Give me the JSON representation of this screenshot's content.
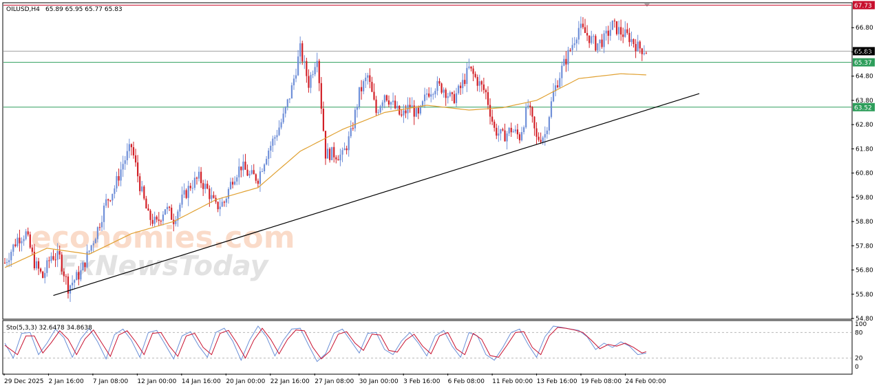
{
  "header": {
    "symbol": "OILUSD,H4",
    "ohlc": "65.89 65.95 65.77 65.83"
  },
  "colors": {
    "up_candle": "#6f8fd8",
    "down_candle": "#d21f26",
    "ma_line": "#e0a030",
    "resistance_line": "#c8102e",
    "support_line": "#2e9e5b",
    "current_price_line": "#a0a0a0",
    "trendline": "#000000",
    "stoch_main": "#6a8fd6",
    "stoch_signal": "#c8102e"
  },
  "chart_data": [
    {
      "type": "candlestick",
      "title": "OILUSD,H4",
      "ylim": [
        54.8,
        67.8
      ],
      "y_ticks": [
        "66.80",
        "65.80",
        "64.80",
        "63.80",
        "62.80",
        "61.80",
        "60.80",
        "59.80",
        "58.80",
        "57.80",
        "56.80",
        "55.80",
        "54.80"
      ],
      "x_ticks": [
        "29 Dec 2025",
        "2 Jan 16:00",
        "7 Jan 08:00",
        "12 Jan 00:00",
        "14 Jan 16:00",
        "20 Jan 00:00",
        "22 Jan 16:00",
        "27 Jan 08:00",
        "30 Jan 00:00",
        "3 Feb 16:00",
        "6 Feb 08:00",
        "11 Feb 00:00",
        "13 Feb 16:00",
        "19 Feb 08:00",
        "24 Feb 00:00"
      ],
      "horizontal_levels": [
        {
          "label": "67.73",
          "value": 67.73,
          "kind": "resistance"
        },
        {
          "label": "65.83",
          "value": 65.83,
          "kind": "current"
        },
        {
          "label": "65.37",
          "value": 65.37,
          "kind": "support"
        },
        {
          "label": "63.52",
          "value": 63.52,
          "kind": "support"
        }
      ],
      "trendline": {
        "from": {
          "bar": 20,
          "price": 55.75
        },
        "to": {
          "bar": 168,
          "price": 64.08
        }
      },
      "close_path": [
        [
          0,
          57.1
        ],
        [
          6,
          58.1
        ],
        [
          10,
          58.3
        ],
        [
          14,
          57.1
        ],
        [
          18,
          56.5
        ],
        [
          22,
          57.4
        ],
        [
          26,
          57.3
        ],
        [
          30,
          56.1
        ],
        [
          36,
          56.7
        ],
        [
          40,
          57.6
        ],
        [
          44,
          58.5
        ],
        [
          48,
          59.6
        ],
        [
          52,
          60.2
        ],
        [
          56,
          61.2
        ],
        [
          60,
          61.9
        ],
        [
          64,
          60.3
        ],
        [
          68,
          59.0
        ],
        [
          72,
          58.7
        ],
        [
          76,
          59.4
        ],
        [
          80,
          58.9
        ],
        [
          84,
          59.7
        ],
        [
          88,
          60.3
        ],
        [
          92,
          60.6
        ],
        [
          96,
          60.1
        ],
        [
          100,
          59.4
        ],
        [
          104,
          59.6
        ],
        [
          108,
          60.6
        ],
        [
          112,
          61.1
        ],
        [
          116,
          60.7
        ],
        [
          120,
          60.6
        ],
        [
          124,
          61.6
        ],
        [
          128,
          62.3
        ],
        [
          132,
          63.1
        ],
        [
          136,
          64.3
        ],
        [
          140,
          65.9
        ],
        [
          144,
          64.5
        ],
        [
          148,
          65.7
        ],
        [
          150,
          63.6
        ],
        [
          152,
          61.6
        ],
        [
          156,
          61.6
        ],
        [
          160,
          61.5
        ],
        [
          164,
          62.4
        ],
        [
          168,
          64.1
        ],
        [
          172,
          64.8
        ],
        [
          176,
          63.3
        ],
        [
          180,
          64.1
        ],
        [
          184,
          63.6
        ],
        [
          188,
          63.1
        ],
        [
          192,
          63.6
        ],
        [
          196,
          63.1
        ],
        [
          200,
          64.1
        ],
        [
          204,
          64.4
        ],
        [
          208,
          64.3
        ],
        [
          212,
          63.8
        ],
        [
          216,
          64.3
        ],
        [
          220,
          65.1
        ],
        [
          224,
          64.6
        ],
        [
          228,
          64.1
        ],
        [
          232,
          62.6
        ],
        [
          236,
          62.3
        ],
        [
          240,
          62.6
        ],
        [
          244,
          62.3
        ],
        [
          248,
          63.6
        ],
        [
          252,
          62.2
        ],
        [
          256,
          62.4
        ],
        [
          260,
          64.1
        ],
        [
          264,
          65.1
        ],
        [
          268,
          65.9
        ],
        [
          272,
          66.8
        ],
        [
          276,
          66.5
        ],
        [
          280,
          66.1
        ],
        [
          284,
          66.3
        ],
        [
          288,
          66.9
        ],
        [
          292,
          66.6
        ],
        [
          296,
          66.4
        ],
        [
          300,
          66.0
        ],
        [
          304,
          65.85
        ]
      ],
      "ma_path": [
        [
          0,
          56.9
        ],
        [
          20,
          57.7
        ],
        [
          40,
          57.45
        ],
        [
          60,
          58.3
        ],
        [
          80,
          58.8
        ],
        [
          100,
          59.7
        ],
        [
          120,
          60.2
        ],
        [
          140,
          61.7
        ],
        [
          160,
          62.6
        ],
        [
          180,
          63.3
        ],
        [
          200,
          63.6
        ],
        [
          220,
          63.4
        ],
        [
          236,
          63.5
        ],
        [
          252,
          63.8
        ],
        [
          272,
          64.7
        ],
        [
          292,
          64.9
        ],
        [
          304,
          64.85
        ]
      ]
    },
    {
      "type": "line",
      "title": "Sto(5,3,3) 32.6478 34.8638",
      "ylim": [
        0,
        100
      ],
      "y_ticks": [
        "100",
        "80",
        "20",
        "0"
      ],
      "levels": [
        80,
        20
      ],
      "series": [
        {
          "name": "main",
          "points": [
            [
              0,
              55
            ],
            [
              4,
              20
            ],
            [
              8,
              78
            ],
            [
              12,
              80
            ],
            [
              16,
              28
            ],
            [
              20,
              55
            ],
            [
              24,
              88
            ],
            [
              28,
              68
            ],
            [
              32,
              22
            ],
            [
              36,
              65
            ],
            [
              40,
              90
            ],
            [
              44,
              58
            ],
            [
              48,
              18
            ],
            [
              52,
              75
            ],
            [
              56,
              88
            ],
            [
              60,
              62
            ],
            [
              64,
              22
            ],
            [
              68,
              80
            ],
            [
              72,
              85
            ],
            [
              76,
              52
            ],
            [
              80,
              18
            ],
            [
              84,
              72
            ],
            [
              88,
              82
            ],
            [
              92,
              48
            ],
            [
              96,
              22
            ],
            [
              100,
              80
            ],
            [
              104,
              90
            ],
            [
              108,
              60
            ],
            [
              112,
              15
            ],
            [
              116,
              62
            ],
            [
              120,
              95
            ],
            [
              124,
              70
            ],
            [
              128,
              25
            ],
            [
              132,
              62
            ],
            [
              136,
              88
            ],
            [
              140,
              90
            ],
            [
              144,
              50
            ],
            [
              148,
              12
            ],
            [
              152,
              30
            ],
            [
              156,
              78
            ],
            [
              160,
              88
            ],
            [
              164,
              60
            ],
            [
              168,
              32
            ],
            [
              172,
              78
            ],
            [
              176,
              80
            ],
            [
              180,
              40
            ],
            [
              184,
              28
            ],
            [
              188,
              60
            ],
            [
              192,
              80
            ],
            [
              196,
              55
            ],
            [
              200,
              25
            ],
            [
              204,
              72
            ],
            [
              208,
              85
            ],
            [
              212,
              48
            ],
            [
              216,
              22
            ],
            [
              220,
              80
            ],
            [
              224,
              72
            ],
            [
              228,
              28
            ],
            [
              232,
              15
            ],
            [
              236,
              45
            ],
            [
              240,
              80
            ],
            [
              244,
              88
            ],
            [
              248,
              52
            ],
            [
              252,
              22
            ],
            [
              256,
              70
            ],
            [
              260,
              95
            ],
            [
              264,
              92
            ],
            [
              268,
              88
            ],
            [
              272,
              85
            ],
            [
              276,
              70
            ],
            [
              280,
              40
            ],
            [
              284,
              55
            ],
            [
              288,
              45
            ],
            [
              292,
              58
            ],
            [
              296,
              48
            ],
            [
              300,
              28
            ],
            [
              304,
              32
            ]
          ]
        },
        {
          "name": "signal",
          "points": [
            [
              0,
              50
            ],
            [
              6,
              28
            ],
            [
              10,
              72
            ],
            [
              14,
              72
            ],
            [
              18,
              32
            ],
            [
              22,
              56
            ],
            [
              26,
              84
            ],
            [
              30,
              64
            ],
            [
              34,
              28
            ],
            [
              38,
              65
            ],
            [
              42,
              86
            ],
            [
              46,
              55
            ],
            [
              50,
              24
            ],
            [
              54,
              74
            ],
            [
              58,
              84
            ],
            [
              62,
              58
            ],
            [
              66,
              28
            ],
            [
              70,
              78
            ],
            [
              74,
              80
            ],
            [
              78,
              48
            ],
            [
              82,
              24
            ],
            [
              86,
              72
            ],
            [
              90,
              78
            ],
            [
              94,
              45
            ],
            [
              98,
              28
            ],
            [
              102,
              78
            ],
            [
              106,
              85
            ],
            [
              110,
              55
            ],
            [
              114,
              20
            ],
            [
              118,
              62
            ],
            [
              122,
              90
            ],
            [
              126,
              64
            ],
            [
              130,
              30
            ],
            [
              134,
              64
            ],
            [
              138,
              86
            ],
            [
              142,
              84
            ],
            [
              146,
              45
            ],
            [
              150,
              18
            ],
            [
              154,
              36
            ],
            [
              158,
              76
            ],
            [
              162,
              82
            ],
            [
              166,
              55
            ],
            [
              170,
              38
            ],
            [
              174,
              76
            ],
            [
              178,
              74
            ],
            [
              182,
              38
            ],
            [
              186,
              34
            ],
            [
              190,
              62
            ],
            [
              194,
              76
            ],
            [
              198,
              48
            ],
            [
              202,
              30
            ],
            [
              206,
              72
            ],
            [
              210,
              80
            ],
            [
              214,
              42
            ],
            [
              218,
              28
            ],
            [
              222,
              78
            ],
            [
              226,
              64
            ],
            [
              230,
              26
            ],
            [
              234,
              22
            ],
            [
              238,
              50
            ],
            [
              242,
              80
            ],
            [
              246,
              82
            ],
            [
              250,
              45
            ],
            [
              254,
              28
            ],
            [
              258,
              72
            ],
            [
              262,
              92
            ],
            [
              266,
              90
            ],
            [
              270,
              86
            ],
            [
              274,
              80
            ],
            [
              278,
              62
            ],
            [
              282,
              42
            ],
            [
              286,
              52
            ],
            [
              290,
              48
            ],
            [
              294,
              55
            ],
            [
              298,
              45
            ],
            [
              302,
              32
            ],
            [
              304,
              35
            ]
          ]
        }
      ]
    }
  ],
  "watermark": {
    "line1": "economies.com",
    "line2": "FxNewsToday"
  }
}
